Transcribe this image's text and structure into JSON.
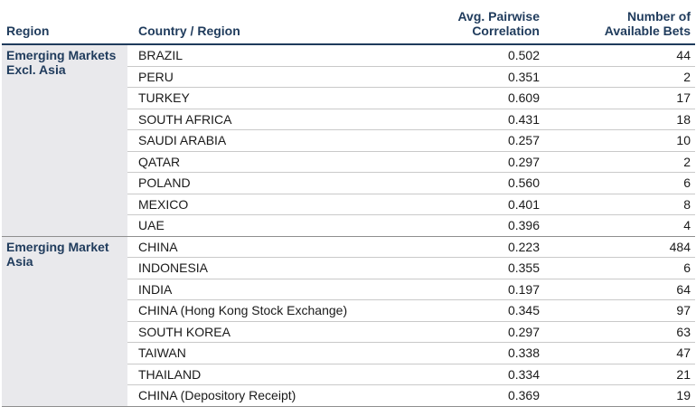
{
  "headers": {
    "region": "Region",
    "country": "Country / Region",
    "correlation_line1": "Avg. Pairwise",
    "correlation_line2": "Correlation",
    "bets_line1": "Number of",
    "bets_line2": "Available Bets"
  },
  "groups": [
    {
      "region_line1": "Emerging Markets",
      "region_line2": "Excl. Asia",
      "rows": [
        {
          "country": "BRAZIL",
          "correlation": "0.502",
          "bets": "44"
        },
        {
          "country": "PERU",
          "correlation": "0.351",
          "bets": "2"
        },
        {
          "country": "TURKEY",
          "correlation": "0.609",
          "bets": "17"
        },
        {
          "country": "SOUTH AFRICA",
          "correlation": "0.431",
          "bets": "18"
        },
        {
          "country": "SAUDI ARABIA",
          "correlation": "0.257",
          "bets": "10"
        },
        {
          "country": "QATAR",
          "correlation": "0.297",
          "bets": "2"
        },
        {
          "country": "POLAND",
          "correlation": "0.560",
          "bets": "6"
        },
        {
          "country": "MEXICO",
          "correlation": "0.401",
          "bets": "8"
        },
        {
          "country": "UAE",
          "correlation": "0.396",
          "bets": "4"
        }
      ]
    },
    {
      "region_line1": "Emerging Market",
      "region_line2": "Asia",
      "rows": [
        {
          "country": "CHINA",
          "correlation": "0.223",
          "bets": "484"
        },
        {
          "country": "INDONESIA",
          "correlation": "0.355",
          "bets": "6"
        },
        {
          "country": "INDIA",
          "correlation": "0.197",
          "bets": "64"
        },
        {
          "country": "CHINA (Hong Kong Stock Exchange)",
          "correlation": "0.345",
          "bets": "97"
        },
        {
          "country": "SOUTH KOREA",
          "correlation": "0.297",
          "bets": "63"
        },
        {
          "country": "TAIWAN",
          "correlation": "0.338",
          "bets": "47"
        },
        {
          "country": "THAILAND",
          "correlation": "0.334",
          "bets": "21"
        },
        {
          "country": "CHINA (Depository Receipt)",
          "correlation": "0.369",
          "bets": "19"
        }
      ]
    }
  ]
}
